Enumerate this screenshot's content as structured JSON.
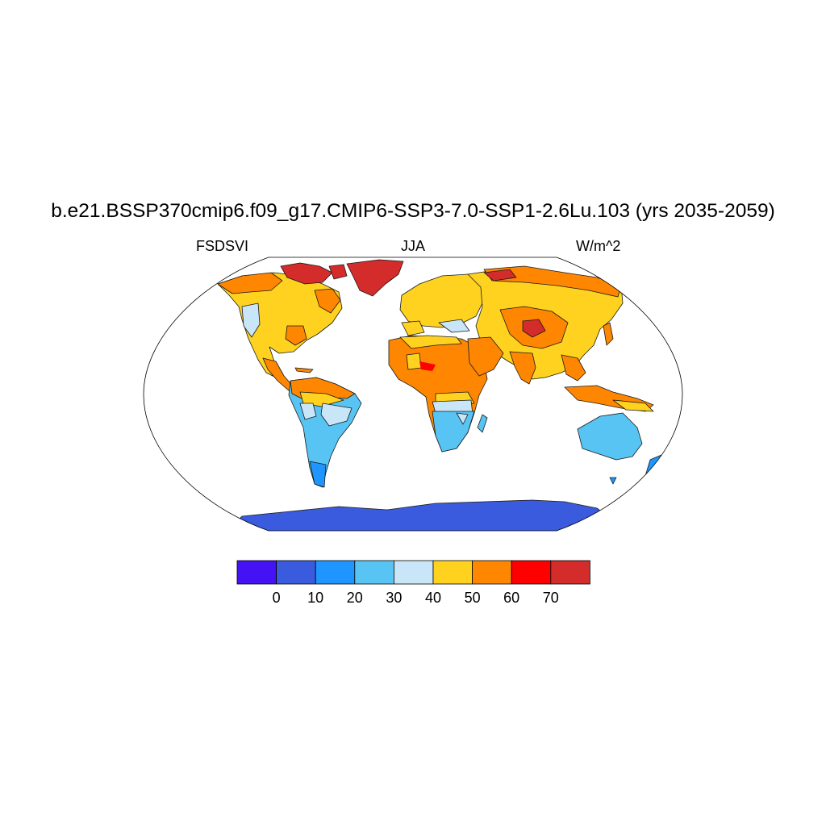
{
  "title": "b.e21.BSSP370cmip6.f09_g17.CMIP6-SSP3-7.0-SSP1-2.6Lu.103 (yrs 2035-2059)",
  "subtitle_left": "FSDSVI",
  "subtitle_center": "JJA",
  "subtitle_right": "W/m^2",
  "colorbar": {
    "colors": [
      "#4511f5",
      "#3b5bde",
      "#1f96ff",
      "#58c4f4",
      "#c8e6f7",
      "#ffd220",
      "#ff8600",
      "#fe0000",
      "#d42b2b"
    ],
    "labels": [
      "0",
      "10",
      "20",
      "30",
      "40",
      "50",
      "60",
      "70"
    ]
  }
}
